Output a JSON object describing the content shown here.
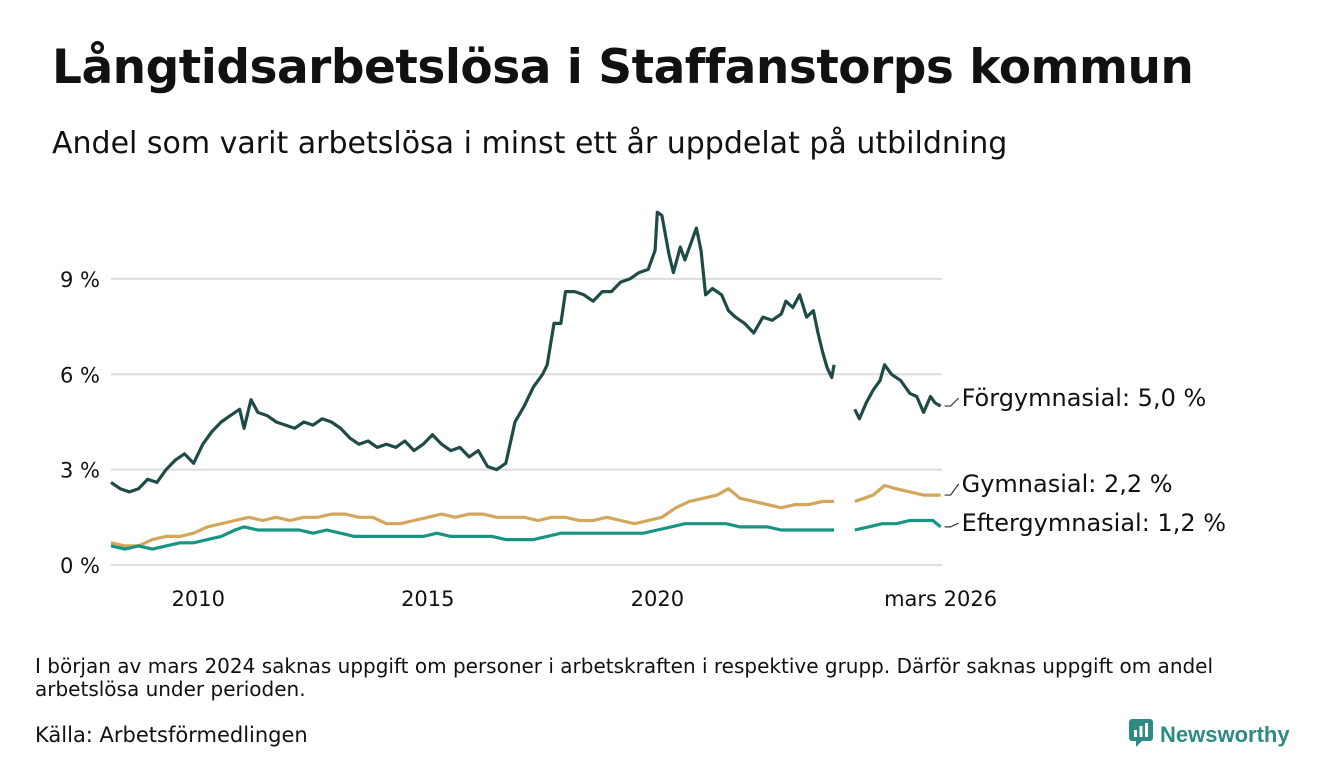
{
  "title": "Långtidsarbetslösa i Staffanstorps kommun",
  "subtitle": "Andel som varit arbetslösa i minst ett år uppdelat på utbildning",
  "note": "I början av mars 2024 saknas uppgift om personer i arbetskraften i respektive grupp. Därför saknas uppgift om andel arbetslösa under perioden.",
  "source": "Källa: Arbetsförmedlingen",
  "brand": {
    "name": "Newsworthy",
    "icon": "newsworthy-logo-icon",
    "color": "#2f8a83"
  },
  "chart_data": {
    "type": "line",
    "title": "Långtidsarbetslösa i Staffanstorps kommun",
    "xlabel": "",
    "ylabel": "",
    "xlim": [
      2008.1,
      2026.2
    ],
    "ylim": [
      0,
      11.2
    ],
    "y_ticks": [
      0,
      3,
      6,
      9
    ],
    "y_tick_labels": [
      "0 %",
      "3 %",
      "6 %",
      "9 %"
    ],
    "x_ticks": [
      2010,
      2015,
      2020,
      2026.17
    ],
    "x_tick_labels": [
      "2010",
      "2015",
      "2020",
      "mars 2026"
    ],
    "grid": "horizontal",
    "gap": [
      2023.85,
      2024.3
    ],
    "series": [
      {
        "name": "Förgymnasial",
        "label": "Förgymnasial: 5,0 %",
        "color": "#1f4b47",
        "points": [
          [
            2008.1,
            2.6
          ],
          [
            2008.3,
            2.4
          ],
          [
            2008.5,
            2.3
          ],
          [
            2008.7,
            2.4
          ],
          [
            2008.9,
            2.7
          ],
          [
            2009.1,
            2.6
          ],
          [
            2009.3,
            3.0
          ],
          [
            2009.5,
            3.3
          ],
          [
            2009.7,
            3.5
          ],
          [
            2009.9,
            3.2
          ],
          [
            2010.1,
            3.8
          ],
          [
            2010.3,
            4.2
          ],
          [
            2010.5,
            4.5
          ],
          [
            2010.7,
            4.7
          ],
          [
            2010.9,
            4.9
          ],
          [
            2011.0,
            4.3
          ],
          [
            2011.15,
            5.2
          ],
          [
            2011.3,
            4.8
          ],
          [
            2011.5,
            4.7
          ],
          [
            2011.7,
            4.5
          ],
          [
            2011.9,
            4.4
          ],
          [
            2012.1,
            4.3
          ],
          [
            2012.3,
            4.5
          ],
          [
            2012.5,
            4.4
          ],
          [
            2012.7,
            4.6
          ],
          [
            2012.9,
            4.5
          ],
          [
            2013.1,
            4.3
          ],
          [
            2013.3,
            4.0
          ],
          [
            2013.5,
            3.8
          ],
          [
            2013.7,
            3.9
          ],
          [
            2013.9,
            3.7
          ],
          [
            2014.1,
            3.8
          ],
          [
            2014.3,
            3.7
          ],
          [
            2014.5,
            3.9
          ],
          [
            2014.7,
            3.6
          ],
          [
            2014.9,
            3.8
          ],
          [
            2015.1,
            4.1
          ],
          [
            2015.3,
            3.8
          ],
          [
            2015.5,
            3.6
          ],
          [
            2015.7,
            3.7
          ],
          [
            2015.9,
            3.4
          ],
          [
            2016.1,
            3.6
          ],
          [
            2016.3,
            3.1
          ],
          [
            2016.5,
            3.0
          ],
          [
            2016.7,
            3.2
          ],
          [
            2016.9,
            4.5
          ],
          [
            2017.1,
            5.0
          ],
          [
            2017.3,
            5.6
          ],
          [
            2017.5,
            6.0
          ],
          [
            2017.6,
            6.3
          ],
          [
            2017.75,
            7.6
          ],
          [
            2017.9,
            7.6
          ],
          [
            2018.0,
            8.6
          ],
          [
            2018.2,
            8.6
          ],
          [
            2018.4,
            8.5
          ],
          [
            2018.6,
            8.3
          ],
          [
            2018.8,
            8.6
          ],
          [
            2019.0,
            8.6
          ],
          [
            2019.2,
            8.9
          ],
          [
            2019.4,
            9.0
          ],
          [
            2019.6,
            9.2
          ],
          [
            2019.8,
            9.3
          ],
          [
            2019.95,
            9.9
          ],
          [
            2020.0,
            11.1
          ],
          [
            2020.1,
            11.0
          ],
          [
            2020.25,
            9.8
          ],
          [
            2020.35,
            9.2
          ],
          [
            2020.5,
            10.0
          ],
          [
            2020.6,
            9.6
          ],
          [
            2020.75,
            10.2
          ],
          [
            2020.85,
            10.6
          ],
          [
            2020.95,
            9.9
          ],
          [
            2021.05,
            8.5
          ],
          [
            2021.2,
            8.7
          ],
          [
            2021.4,
            8.5
          ],
          [
            2021.55,
            8.0
          ],
          [
            2021.7,
            7.8
          ],
          [
            2021.9,
            7.6
          ],
          [
            2022.1,
            7.3
          ],
          [
            2022.3,
            7.8
          ],
          [
            2022.5,
            7.7
          ],
          [
            2022.7,
            7.9
          ],
          [
            2022.8,
            8.3
          ],
          [
            2022.95,
            8.1
          ],
          [
            2023.1,
            8.5
          ],
          [
            2023.25,
            7.8
          ],
          [
            2023.4,
            8.0
          ],
          [
            2023.5,
            7.3
          ],
          [
            2023.6,
            6.7
          ],
          [
            2023.7,
            6.2
          ],
          [
            2023.8,
            5.9
          ],
          [
            2023.85,
            6.3
          ],
          [
            2024.3,
            4.9
          ],
          [
            2024.4,
            4.6
          ],
          [
            2024.55,
            5.1
          ],
          [
            2024.7,
            5.5
          ],
          [
            2024.85,
            5.8
          ],
          [
            2024.95,
            6.3
          ],
          [
            2025.1,
            6.0
          ],
          [
            2025.3,
            5.8
          ],
          [
            2025.5,
            5.4
          ],
          [
            2025.65,
            5.3
          ],
          [
            2025.8,
            4.8
          ],
          [
            2025.95,
            5.3
          ],
          [
            2026.05,
            5.1
          ],
          [
            2026.17,
            5.0
          ]
        ]
      },
      {
        "name": "Gymnasial",
        "label": "Gymnasial: 2,2 %",
        "color": "#d3a65a",
        "points": [
          [
            2008.1,
            0.7
          ],
          [
            2008.4,
            0.6
          ],
          [
            2008.7,
            0.6
          ],
          [
            2009.0,
            0.8
          ],
          [
            2009.3,
            0.9
          ],
          [
            2009.6,
            0.9
          ],
          [
            2009.9,
            1.0
          ],
          [
            2010.2,
            1.2
          ],
          [
            2010.5,
            1.3
          ],
          [
            2010.8,
            1.4
          ],
          [
            2011.1,
            1.5
          ],
          [
            2011.4,
            1.4
          ],
          [
            2011.7,
            1.5
          ],
          [
            2012.0,
            1.4
          ],
          [
            2012.3,
            1.5
          ],
          [
            2012.6,
            1.5
          ],
          [
            2012.9,
            1.6
          ],
          [
            2013.2,
            1.6
          ],
          [
            2013.5,
            1.5
          ],
          [
            2013.8,
            1.5
          ],
          [
            2014.1,
            1.3
          ],
          [
            2014.4,
            1.3
          ],
          [
            2014.7,
            1.4
          ],
          [
            2015.0,
            1.5
          ],
          [
            2015.3,
            1.6
          ],
          [
            2015.6,
            1.5
          ],
          [
            2015.9,
            1.6
          ],
          [
            2016.2,
            1.6
          ],
          [
            2016.5,
            1.5
          ],
          [
            2016.8,
            1.5
          ],
          [
            2017.1,
            1.5
          ],
          [
            2017.4,
            1.4
          ],
          [
            2017.7,
            1.5
          ],
          [
            2018.0,
            1.5
          ],
          [
            2018.3,
            1.4
          ],
          [
            2018.6,
            1.4
          ],
          [
            2018.9,
            1.5
          ],
          [
            2019.2,
            1.4
          ],
          [
            2019.5,
            1.3
          ],
          [
            2019.8,
            1.4
          ],
          [
            2020.1,
            1.5
          ],
          [
            2020.4,
            1.8
          ],
          [
            2020.7,
            2.0
          ],
          [
            2021.0,
            2.1
          ],
          [
            2021.3,
            2.2
          ],
          [
            2021.55,
            2.4
          ],
          [
            2021.8,
            2.1
          ],
          [
            2022.1,
            2.0
          ],
          [
            2022.4,
            1.9
          ],
          [
            2022.7,
            1.8
          ],
          [
            2023.0,
            1.9
          ],
          [
            2023.3,
            1.9
          ],
          [
            2023.6,
            2.0
          ],
          [
            2023.85,
            2.0
          ],
          [
            2024.3,
            2.0
          ],
          [
            2024.5,
            2.1
          ],
          [
            2024.7,
            2.2
          ],
          [
            2024.95,
            2.5
          ],
          [
            2025.2,
            2.4
          ],
          [
            2025.5,
            2.3
          ],
          [
            2025.8,
            2.2
          ],
          [
            2026.17,
            2.2
          ]
        ]
      },
      {
        "name": "Eftergymnasial",
        "label": "Eftergymnasial: 1,2 %",
        "color": "#1a9482",
        "points": [
          [
            2008.1,
            0.6
          ],
          [
            2008.4,
            0.5
          ],
          [
            2008.7,
            0.6
          ],
          [
            2009.0,
            0.5
          ],
          [
            2009.3,
            0.6
          ],
          [
            2009.6,
            0.7
          ],
          [
            2009.9,
            0.7
          ],
          [
            2010.2,
            0.8
          ],
          [
            2010.5,
            0.9
          ],
          [
            2010.8,
            1.1
          ],
          [
            2011.0,
            1.2
          ],
          [
            2011.3,
            1.1
          ],
          [
            2011.6,
            1.1
          ],
          [
            2011.9,
            1.1
          ],
          [
            2012.2,
            1.1
          ],
          [
            2012.5,
            1.0
          ],
          [
            2012.8,
            1.1
          ],
          [
            2013.1,
            1.0
          ],
          [
            2013.4,
            0.9
          ],
          [
            2013.7,
            0.9
          ],
          [
            2014.0,
            0.9
          ],
          [
            2014.3,
            0.9
          ],
          [
            2014.6,
            0.9
          ],
          [
            2014.9,
            0.9
          ],
          [
            2015.2,
            1.0
          ],
          [
            2015.5,
            0.9
          ],
          [
            2015.8,
            0.9
          ],
          [
            2016.1,
            0.9
          ],
          [
            2016.4,
            0.9
          ],
          [
            2016.7,
            0.8
          ],
          [
            2017.0,
            0.8
          ],
          [
            2017.3,
            0.8
          ],
          [
            2017.6,
            0.9
          ],
          [
            2017.9,
            1.0
          ],
          [
            2018.2,
            1.0
          ],
          [
            2018.5,
            1.0
          ],
          [
            2018.8,
            1.0
          ],
          [
            2019.1,
            1.0
          ],
          [
            2019.4,
            1.0
          ],
          [
            2019.7,
            1.0
          ],
          [
            2020.0,
            1.1
          ],
          [
            2020.3,
            1.2
          ],
          [
            2020.6,
            1.3
          ],
          [
            2020.9,
            1.3
          ],
          [
            2021.2,
            1.3
          ],
          [
            2021.5,
            1.3
          ],
          [
            2021.8,
            1.2
          ],
          [
            2022.1,
            1.2
          ],
          [
            2022.4,
            1.2
          ],
          [
            2022.7,
            1.1
          ],
          [
            2023.0,
            1.1
          ],
          [
            2023.3,
            1.1
          ],
          [
            2023.6,
            1.1
          ],
          [
            2023.85,
            1.1
          ],
          [
            2024.3,
            1.1
          ],
          [
            2024.6,
            1.2
          ],
          [
            2024.9,
            1.3
          ],
          [
            2025.2,
            1.3
          ],
          [
            2025.5,
            1.4
          ],
          [
            2025.8,
            1.4
          ],
          [
            2026.0,
            1.4
          ],
          [
            2026.17,
            1.2
          ]
        ]
      }
    ]
  }
}
